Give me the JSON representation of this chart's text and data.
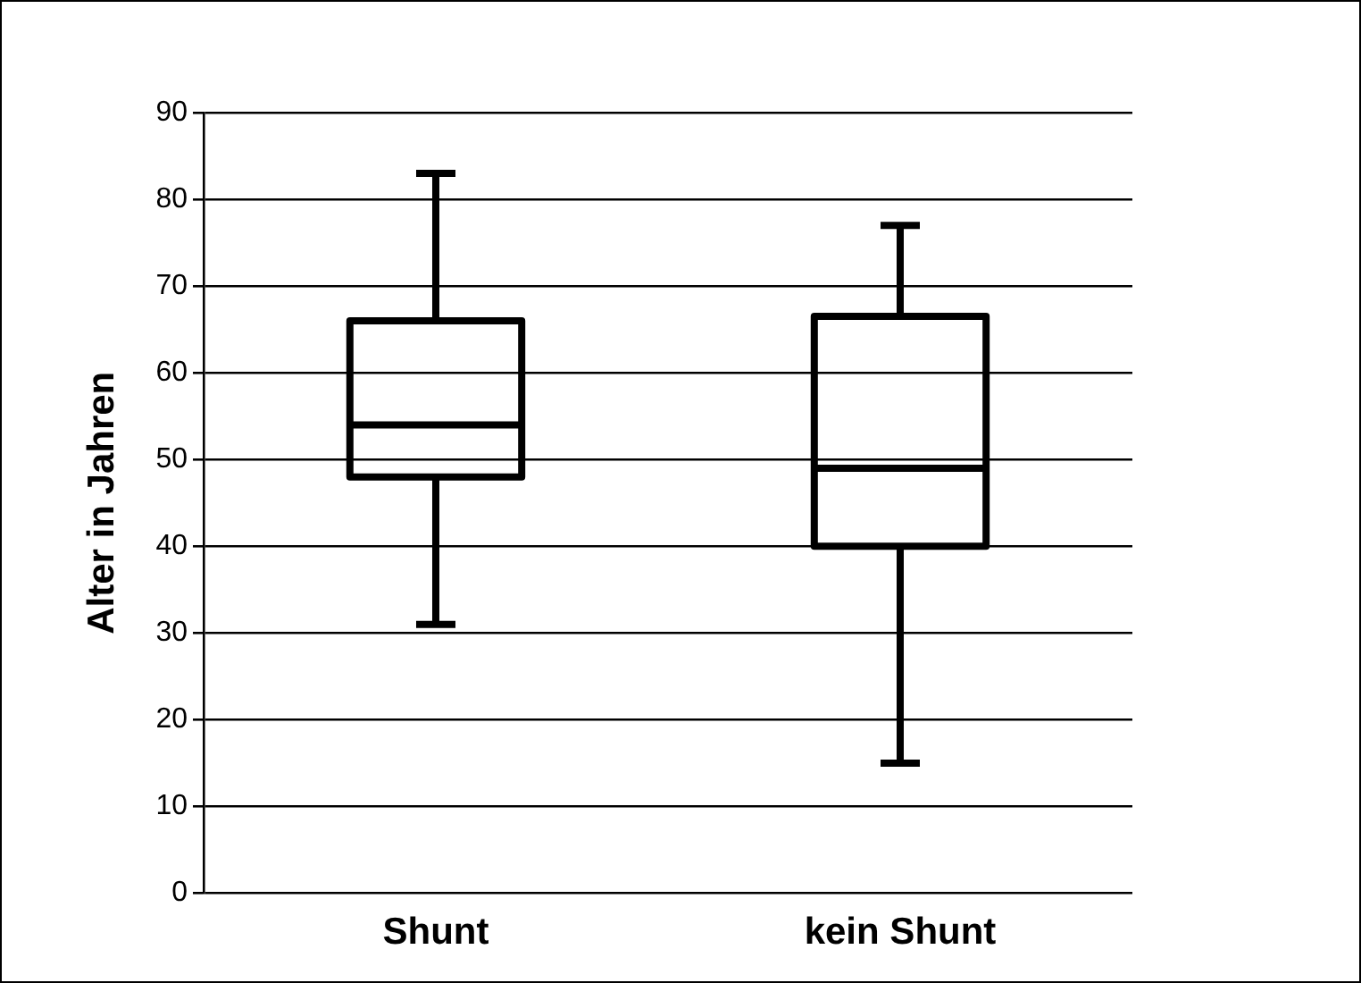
{
  "chart_data": {
    "type": "box",
    "ylabel": "Alter in Jahren",
    "categories": [
      "Shunt",
      "kein Shunt"
    ],
    "boxes": [
      {
        "low": 31,
        "q1": 48,
        "median": 54,
        "q3": 66,
        "high": 83
      },
      {
        "low": 15,
        "q1": 40,
        "median": 49,
        "q3": 66.5,
        "high": 77
      }
    ],
    "color": "#000000",
    "ylim": [
      0,
      90
    ],
    "yticks": [
      0,
      10,
      20,
      30,
      40,
      50,
      60,
      70,
      80,
      90
    ],
    "grid": "y",
    "legend": false
  }
}
